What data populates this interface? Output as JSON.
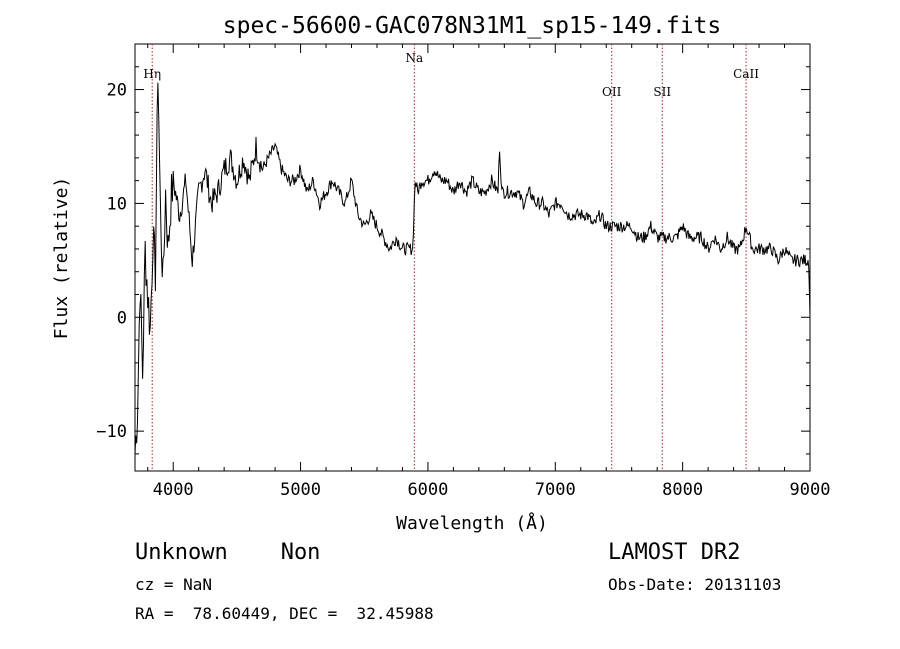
{
  "chart_data": {
    "type": "line",
    "title": "spec-56600-GAC078N31M1_sp15-149.fits",
    "xlabel": "Wavelength (Å)",
    "ylabel": "Flux (relative)",
    "xlim": [
      3700,
      9000
    ],
    "ylim": [
      -13.5,
      24
    ],
    "x_ticks": [
      4000,
      5000,
      6000,
      7000,
      8000,
      9000
    ],
    "x_tick_labels": [
      "4000",
      "5000",
      "6000",
      "7000",
      "8000",
      "9000"
    ],
    "y_ticks": [
      -10,
      0,
      10,
      20
    ],
    "y_tick_labels": [
      "−10",
      "0",
      "10",
      "20"
    ],
    "grid": false,
    "series": [
      {
        "x": [
          3700,
          3720,
          3740,
          3760,
          3780,
          3800,
          3820,
          3840,
          3860,
          3880,
          3900,
          3920,
          3940,
          3960,
          3980,
          4000,
          4050,
          4100,
          4150,
          4200,
          4250,
          4300,
          4350,
          4400,
          4450,
          4500,
          4550,
          4600,
          4650,
          4700,
          4750,
          4800,
          4850,
          4900,
          4950,
          5000,
          5050,
          5100,
          5150,
          5200,
          5250,
          5300,
          5350,
          5400,
          5450,
          5500,
          5550,
          5600,
          5650,
          5700,
          5750,
          5800,
          5850,
          5880,
          5900,
          5920,
          5950,
          6000,
          6050,
          6100,
          6150,
          6200,
          6250,
          6300,
          6350,
          6400,
          6450,
          6500,
          6550,
          6563,
          6580,
          6600,
          6650,
          6700,
          6750,
          6800,
          6850,
          6900,
          6950,
          7000,
          7050,
          7100,
          7150,
          7200,
          7250,
          7300,
          7350,
          7400,
          7450,
          7500,
          7550,
          7600,
          7650,
          7700,
          7750,
          7800,
          7850,
          7900,
          7950,
          8000,
          8050,
          8100,
          8150,
          8200,
          8250,
          8300,
          8350,
          8400,
          8450,
          8500,
          8550,
          8600,
          8650,
          8700,
          8750,
          8800,
          8850,
          8900,
          8950,
          8990,
          9000
        ],
        "y": [
          -12,
          -8,
          3,
          -5,
          6,
          2,
          -1,
          7,
          4,
          22,
          9,
          3,
          11,
          6,
          10,
          12,
          9,
          12,
          5,
          11,
          13,
          10,
          11,
          13,
          14,
          12,
          14,
          12,
          15,
          13,
          14,
          15,
          13,
          12,
          12,
          13,
          11,
          12,
          10,
          11,
          12,
          11,
          10,
          12,
          9,
          8,
          9,
          8,
          7,
          6,
          7,
          6,
          6,
          6,
          12,
          11,
          12,
          12,
          13,
          12,
          12,
          11,
          12,
          11,
          12,
          11,
          11,
          12,
          11,
          15,
          11,
          11,
          11,
          11,
          10,
          11,
          10,
          10,
          9,
          10,
          10,
          9,
          9,
          9,
          9,
          8,
          9,
          8,
          8,
          8,
          8,
          8,
          7,
          7,
          8,
          7,
          7,
          7,
          7,
          8,
          7,
          7,
          7,
          6,
          7,
          6,
          7,
          6,
          6,
          8,
          6,
          6,
          6,
          6,
          5,
          6,
          5,
          5,
          5,
          5,
          0
        ]
      }
    ],
    "annotations": [
      {
        "label": "Hη",
        "x": 3835
      },
      {
        "label": "Na",
        "x": 5893
      },
      {
        "label": "OII",
        "x": 7443
      },
      {
        "label": "SII",
        "x": 7840
      },
      {
        "label": "CaII",
        "x": 8498
      }
    ]
  },
  "footer": {
    "object": "Unknown    Non",
    "cz": "cz = NaN",
    "coords": "RA =  78.60449, DEC =  32.45988",
    "survey": "LAMOST DR2",
    "obs_date": "Obs-Date: 20131103"
  }
}
